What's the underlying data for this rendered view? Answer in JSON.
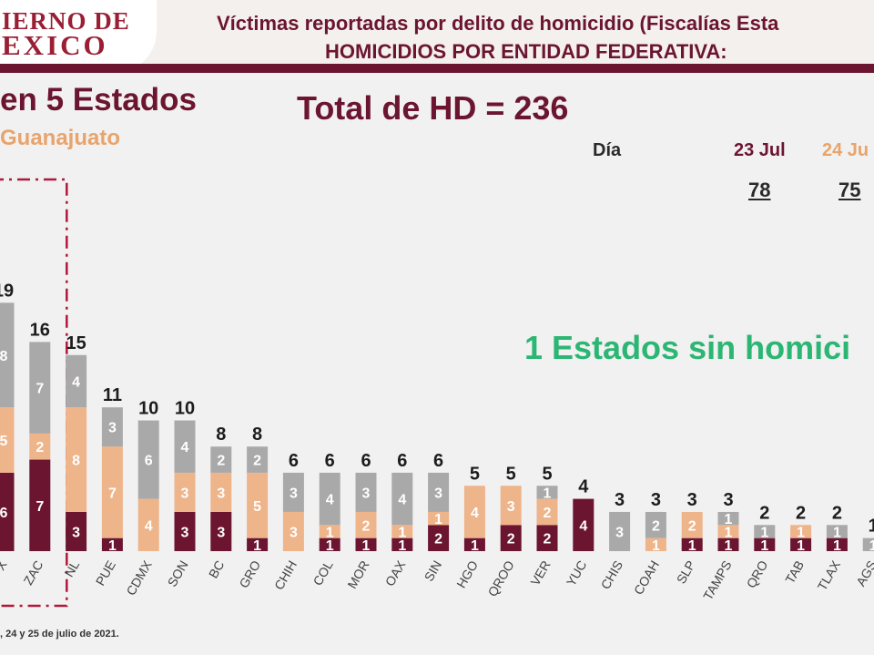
{
  "header": {
    "logo_line1": "IERNO DE",
    "logo_line2": "EXICO",
    "title_line1": "Víctimas reportadas por delito de homicidio (Fiscalías Esta",
    "title_line2": "HOMICIDIOS POR ENTIDAD FEDERATIVA:"
  },
  "main": {
    "big_title": "en 5 Estados",
    "subtitle": "Guanajuato",
    "total": "Total de HD = 236",
    "dia_label": "Día",
    "dates": [
      "23 Jul",
      "24 Ju"
    ],
    "date_values": [
      "78",
      "75"
    ],
    "green_note": "1 Estados sin homici",
    "footnote": ", 24 y 25 de julio de 2021."
  },
  "colors": {
    "maroon": "#6b1531",
    "peach": "#eeb48a",
    "gray": "#a9a9a9",
    "green": "#2bb673",
    "highlight_box": "#b0183a"
  },
  "chart_data": {
    "type": "bar",
    "stacked": true,
    "categories": [
      "X",
      "ZAC",
      "NL",
      "PUE",
      "CDMX",
      "SON",
      "BC",
      "GRO",
      "CHIH",
      "COL",
      "MOR",
      "OAX",
      "SIN",
      "HGO",
      "QROO",
      "VER",
      "YUC",
      "CHIS",
      "COAH",
      "SLP",
      "TAMPS",
      "QRO",
      "TAB",
      "TLAX",
      "AGS"
    ],
    "totals": [
      19,
      16,
      15,
      11,
      10,
      10,
      8,
      8,
      6,
      6,
      6,
      6,
      6,
      5,
      5,
      5,
      4,
      3,
      3,
      3,
      3,
      2,
      2,
      2,
      1
    ],
    "series": [
      {
        "values": [
          6,
          7,
          3,
          1,
          0,
          3,
          3,
          1,
          0,
          1,
          1,
          1,
          2,
          1,
          2,
          2,
          4,
          0,
          0,
          1,
          1,
          1,
          1,
          1,
          0
        ]
      },
      {
        "values": [
          5,
          2,
          8,
          7,
          4,
          3,
          3,
          5,
          3,
          1,
          2,
          1,
          1,
          4,
          3,
          2,
          0,
          0,
          1,
          2,
          1,
          0,
          1,
          0,
          0
        ]
      },
      {
        "values": [
          8,
          7,
          4,
          3,
          6,
          4,
          2,
          2,
          3,
          4,
          3,
          4,
          3,
          0,
          0,
          1,
          0,
          3,
          2,
          0,
          1,
          1,
          0,
          1,
          1
        ]
      }
    ],
    "highlighted": [
      "X",
      "ZAC"
    ]
  }
}
